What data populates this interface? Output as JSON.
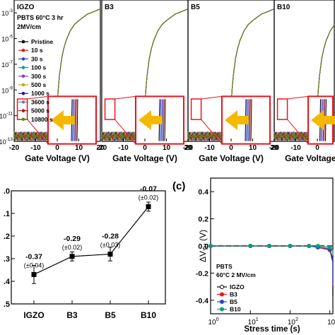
{
  "chart_data": [
    {
      "type": "line",
      "panels": [
        {
          "label": "IGZO",
          "condition_lines": [
            "PBTS 60°C 3 hr",
            "2MV/cm"
          ],
          "vth_shift_V": 0.0,
          "legend": [
            "Pristine",
            "10 s",
            "30 s",
            "100 s",
            "300 s",
            "500 s",
            "1000 s",
            "3600 s",
            "5000 s",
            "10800 s"
          ]
        },
        {
          "label": "B3",
          "vth_shift_V": 0.0
        },
        {
          "label": "B5",
          "vth_shift_V": 0.0
        },
        {
          "label": "B10",
          "vth_shift_V": 0.0
        }
      ],
      "series_colors": [
        "#000000",
        "#e8141c",
        "#2747c8",
        "#0d9c80",
        "#8b3fb8",
        "#c9a51c",
        "#1a1aa0",
        "#808080",
        "#a81e1e",
        "#66801a"
      ],
      "xlabel": "Gate Voltage (V)",
      "xticks": [
        "-20",
        "-10",
        "0",
        "10",
        "20"
      ],
      "xlim": [
        -20,
        20
      ],
      "yticks": [
        "10^-3",
        "10^-5",
        "10^-7",
        "10^-9",
        "10^-11",
        "10^-13"
      ],
      "yscale": "log",
      "ylim_exp": [
        -13,
        -2
      ],
      "transfer_curve": {
        "vg": [
          -20,
          -10,
          -4,
          -2,
          -1,
          -0.5,
          0,
          0.5,
          1,
          2,
          3,
          4,
          6,
          8,
          10,
          14,
          20
        ],
        "log_id": [
          -12.6,
          -12.6,
          -12.6,
          -12.6,
          -12.4,
          -11.6,
          -10.2,
          -8.9,
          -7.9,
          -6.6,
          -5.8,
          -5.2,
          -4.4,
          -3.9,
          -3.6,
          -3.1,
          -2.7
        ]
      },
      "arrow_color": "#f5b800",
      "inset_color": "#e8141c"
    },
    {
      "type": "line",
      "categories": [
        "IGZO",
        "B3",
        "B5",
        "B10"
      ],
      "values": [
        -0.37,
        -0.29,
        -0.28,
        -0.07
      ],
      "errors": [
        0.04,
        0.02,
        0.03,
        0.02
      ],
      "value_labels": [
        "-0.37",
        "-0.29",
        "-0.28",
        "-0.07"
      ],
      "error_labels": [
        "(±0.04)",
        "(±0.02)",
        "(±0.03)",
        "(±0.02)"
      ],
      "yticks": [
        ".0",
        ".1",
        ".2",
        ".3",
        ".4",
        ".5"
      ],
      "ylim": [
        -0.5,
        0.0
      ]
    },
    {
      "type": "line",
      "panel_letter": "(c)",
      "xlabel": "Stress time (s)",
      "ylabel": "ΔV",
      "ylabel_sub": "TH",
      "ylabel_unit": "(V)",
      "xscale": "log",
      "xlim": [
        1,
        10000
      ],
      "xticks": [
        "10^0",
        "10^1",
        "10^2",
        "10^3"
      ],
      "yticks": [
        "0.4",
        "0.2",
        "0.0",
        "-0.2",
        "-0.4"
      ],
      "ylim": [
        -0.5,
        0.5
      ],
      "baseline": {
        "y": 0.0,
        "color": "#e8141c",
        "style": "dashed"
      },
      "legend_title_lines": [
        "PBTS",
        "60°C 2 MV/cm"
      ],
      "series": [
        {
          "name": "IGZO",
          "color": "#000000",
          "marker": "circle-open",
          "x": [
            1,
            10,
            30,
            100,
            300,
            500,
            1000,
            3600,
            5000,
            10800
          ],
          "y": [
            0,
            0,
            0,
            0,
            0,
            -0.01,
            -0.03,
            -0.12,
            -0.2,
            -0.37
          ]
        },
        {
          "name": "B3",
          "color": "#e8141c",
          "marker": "circle",
          "x": [
            1,
            10,
            30,
            100,
            300,
            500,
            1000,
            3600,
            5000,
            10800
          ],
          "y": [
            0,
            0,
            0,
            0,
            0,
            -0.01,
            -0.03,
            -0.1,
            -0.16,
            -0.29
          ]
        },
        {
          "name": "B5",
          "color": "#2747c8",
          "marker": "circle",
          "x": [
            1,
            10,
            30,
            100,
            300,
            500,
            1000,
            3600,
            5000,
            10800
          ],
          "y": [
            0,
            0,
            0,
            0,
            0,
            -0.01,
            -0.02,
            -0.1,
            -0.15,
            -0.28
          ]
        },
        {
          "name": "B10",
          "color": "#0d9c80",
          "marker": "circle",
          "x": [
            1,
            10,
            30,
            100,
            300,
            500,
            1000,
            3600,
            5000,
            10800
          ],
          "y": [
            0,
            0,
            0,
            0,
            0,
            0,
            -0.01,
            -0.03,
            -0.04,
            -0.07
          ]
        }
      ]
    }
  ]
}
